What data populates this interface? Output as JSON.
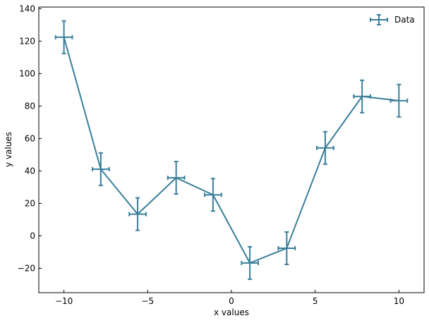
{
  "chart_data": {
    "type": "line",
    "title": "",
    "xlabel": "x values",
    "ylabel": "y values",
    "xlim": [
      -11.5,
      11.5
    ],
    "ylim": [
      -35,
      141
    ],
    "x_ticks": [
      -10,
      -5,
      0,
      5,
      10
    ],
    "x_tick_labels": [
      "−10",
      "−5",
      "0",
      "5",
      "10"
    ],
    "y_ticks": [
      -20,
      0,
      20,
      40,
      60,
      80,
      100,
      120,
      140
    ],
    "y_tick_labels": [
      "−20",
      "0",
      "20",
      "40",
      "60",
      "80",
      "100",
      "120",
      "140"
    ],
    "grid": false,
    "legend_position": "top-right",
    "series": [
      {
        "name": "Data",
        "color": "#3a7f9a",
        "x": [
          -10.0,
          -7.8,
          -5.6,
          -3.3,
          -1.1,
          1.1,
          3.3,
          5.6,
          7.8,
          10.0
        ],
        "y": [
          122.4,
          41.1,
          13.4,
          35.8,
          25.3,
          -16.7,
          -7.6,
          54.2,
          85.9,
          83.3
        ],
        "xerr": 0.5,
        "yerr": 10
      }
    ]
  }
}
